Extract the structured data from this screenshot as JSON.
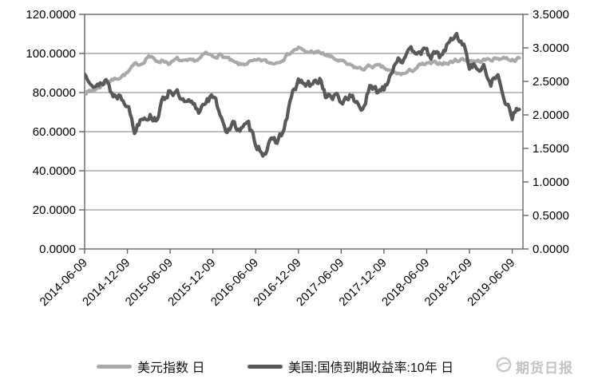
{
  "page": {
    "background": "#ffffff"
  },
  "chart_data": {
    "type": "line",
    "title": "",
    "grid": "horizontal",
    "legend_position": "bottom",
    "x_axis": {
      "tick_labels": [
        "2014-06-09",
        "2014-12-09",
        "2015-06-09",
        "2015-12-09",
        "2016-06-09",
        "2016-12-09",
        "2017-06-09",
        "2017-12-09",
        "2018-06-09",
        "2018-12-09",
        "2019-06-09"
      ],
      "tick_interval_months": 6
    },
    "y_left_axis": {
      "min": 0,
      "max": 120,
      "tick_labels": [
        "120.0000",
        "100.0000",
        "80.0000",
        "60.0000",
        "40.0000",
        "20.0000",
        "0.0000"
      ]
    },
    "y_right_axis": {
      "min": 0,
      "max": 3.5,
      "tick_labels": [
        "3.5000",
        "3.0000",
        "2.5000",
        "2.0000",
        "1.5000",
        "1.0000",
        "0.5000",
        "0.0000"
      ]
    },
    "x_monthly_start": "2014-06",
    "x_monthly_interval": 1,
    "series": [
      {
        "name": "美元指数 日",
        "axis": "left",
        "color": "#a9a9a9",
        "values": [
          80.2,
          81.0,
          82.6,
          85.5,
          86.5,
          88.2,
          90.0,
          94.0,
          95.0,
          99.0,
          96.0,
          96.5,
          95.0,
          97.0,
          95.5,
          96.0,
          97.0,
          99.8,
          98.5,
          99.2,
          97.5,
          95.0,
          94.0,
          95.5,
          95.8,
          96.5,
          95.0,
          95.5,
          98.0,
          101.0,
          102.8,
          100.5,
          101.0,
          100.2,
          99.0,
          97.2,
          96.0,
          94.0,
          92.8,
          92.0,
          93.5,
          93.5,
          92.5,
          90.5,
          89.5,
          89.8,
          91.5,
          93.8,
          94.5,
          94.8,
          95.3,
          94.9,
          96.5,
          97.0,
          96.5,
          95.8,
          96.5,
          97.0,
          97.5,
          97.8,
          96.8,
          97.3
        ]
      },
      {
        "name": "美国:国债到期收益率:10年 日",
        "axis": "right",
        "color": "#595959",
        "values": [
          2.6,
          2.55,
          2.4,
          2.55,
          2.28,
          2.3,
          2.2,
          1.75,
          2.0,
          2.0,
          1.95,
          2.2,
          2.4,
          2.3,
          2.15,
          2.15,
          2.05,
          2.25,
          2.25,
          2.05,
          1.75,
          1.85,
          1.8,
          1.82,
          1.6,
          1.45,
          1.55,
          1.62,
          1.78,
          2.25,
          2.5,
          2.45,
          2.42,
          2.55,
          2.25,
          2.28,
          2.18,
          2.3,
          2.2,
          2.1,
          2.38,
          2.35,
          2.42,
          2.65,
          2.88,
          2.82,
          2.95,
          3.0,
          2.9,
          2.88,
          2.88,
          3.05,
          3.18,
          3.1,
          2.75,
          2.7,
          2.68,
          2.5,
          2.55,
          2.25,
          2.02,
          2.08
        ]
      }
    ]
  },
  "legend": {
    "items": [
      {
        "label": "美元指数 日",
        "color": "#a9a9a9"
      },
      {
        "label": "美国:国债到期收益率:10年 日",
        "color": "#595959"
      }
    ]
  },
  "watermark": {
    "text": "期货日报",
    "color": "#c3c3c3"
  }
}
